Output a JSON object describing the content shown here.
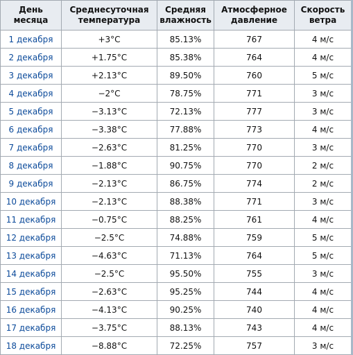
{
  "table": {
    "header": [
      "День\nмесяца",
      "Среднесуточная\nтемпература",
      "Средняя\nвлажность",
      "Атмосферное\nдавление",
      "Скорость\nветра"
    ],
    "rows": [
      [
        "1 декабря",
        "+3°C",
        "85.13%",
        "767",
        "4 м/с"
      ],
      [
        "2 декабря",
        "+1.75°C",
        "85.38%",
        "764",
        "4 м/с"
      ],
      [
        "3 декабря",
        "+2.13°C",
        "89.50%",
        "760",
        "5 м/с"
      ],
      [
        "4 декабря",
        "−2°C",
        "78.75%",
        "771",
        "3 м/с"
      ],
      [
        "5 декабря",
        "−3.13°C",
        "72.13%",
        "777",
        "3 м/с"
      ],
      [
        "6 декабря",
        "−3.38°C",
        "77.88%",
        "773",
        "4 м/с"
      ],
      [
        "7 декабря",
        "−2.63°C",
        "81.25%",
        "770",
        "3 м/с"
      ],
      [
        "8 декабря",
        "−1.88°C",
        "90.75%",
        "770",
        "2 м/с"
      ],
      [
        "9 декабря",
        "−2.13°C",
        "86.75%",
        "774",
        "2 м/с"
      ],
      [
        "10 декабря",
        "−2.13°C",
        "88.38%",
        "771",
        "3 м/с"
      ],
      [
        "11 декабря",
        "−0.75°C",
        "88.25%",
        "761",
        "4 м/с"
      ],
      [
        "12 декабря",
        "−2.5°C",
        "74.88%",
        "759",
        "5 м/с"
      ],
      [
        "13 декабря",
        "−4.63°C",
        "71.13%",
        "764",
        "5 м/с"
      ],
      [
        "14 декабря",
        "−2.5°C",
        "95.50%",
        "755",
        "3 м/с"
      ],
      [
        "15 декабря",
        "−2.63°C",
        "95.25%",
        "744",
        "4 м/с"
      ],
      [
        "16 декабря",
        "−4.13°C",
        "90.25%",
        "740",
        "4 м/с"
      ],
      [
        "17 декабря",
        "−3.75°C",
        "88.13%",
        "743",
        "4 м/с"
      ],
      [
        "18 декабря",
        "−8.88°C",
        "72.25%",
        "757",
        "3 м/с"
      ]
    ]
  }
}
